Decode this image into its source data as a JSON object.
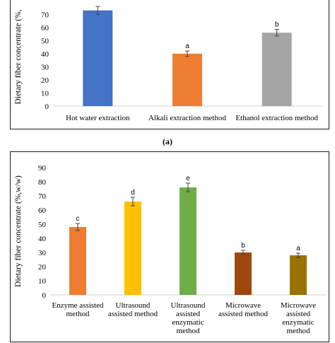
{
  "caption": "(a)",
  "chart_data": [
    {
      "type": "bar",
      "ylabel": "Dietary fiber concentrate (%,",
      "categories": [
        "Hot water extraction",
        "Alkali extraction method",
        "Ethanol extraction method"
      ],
      "values": [
        73,
        40,
        56
      ],
      "errors": [
        3,
        2,
        2.5
      ],
      "labels": [
        "",
        "a",
        "b"
      ],
      "colors": [
        "#4472c4",
        "#ed7d31",
        "#a5a5a5"
      ],
      "yticks": [
        0,
        10,
        20,
        30,
        40,
        50,
        60,
        70
      ],
      "ylim": [
        0,
        75
      ],
      "grid": false
    },
    {
      "type": "bar",
      "ylabel": "Dietary fiber concentrate (%,w/w)",
      "categories": [
        [
          "Enzyme assisted",
          "method"
        ],
        [
          "Ultrasound",
          "assisted method"
        ],
        [
          "Ultrasound",
          "assisted",
          "enzymatic",
          "method"
        ],
        [
          "Microwave",
          "assisted method"
        ],
        [
          "Microwave",
          "assisted",
          "enzymatic",
          "method"
        ]
      ],
      "values": [
        48,
        66,
        76,
        30,
        28
      ],
      "errors": [
        2.5,
        3,
        3,
        1.5,
        1.5
      ],
      "labels": [
        "c",
        "d",
        "e",
        "b",
        "a"
      ],
      "colors": [
        "#ed7d31",
        "#ffc000",
        "#70ad47",
        "#9e480e",
        "#997300"
      ],
      "yticks": [
        0,
        10,
        20,
        30,
        40,
        50,
        60,
        70,
        80,
        90
      ],
      "ylim": [
        0,
        90
      ],
      "grid": false
    }
  ]
}
